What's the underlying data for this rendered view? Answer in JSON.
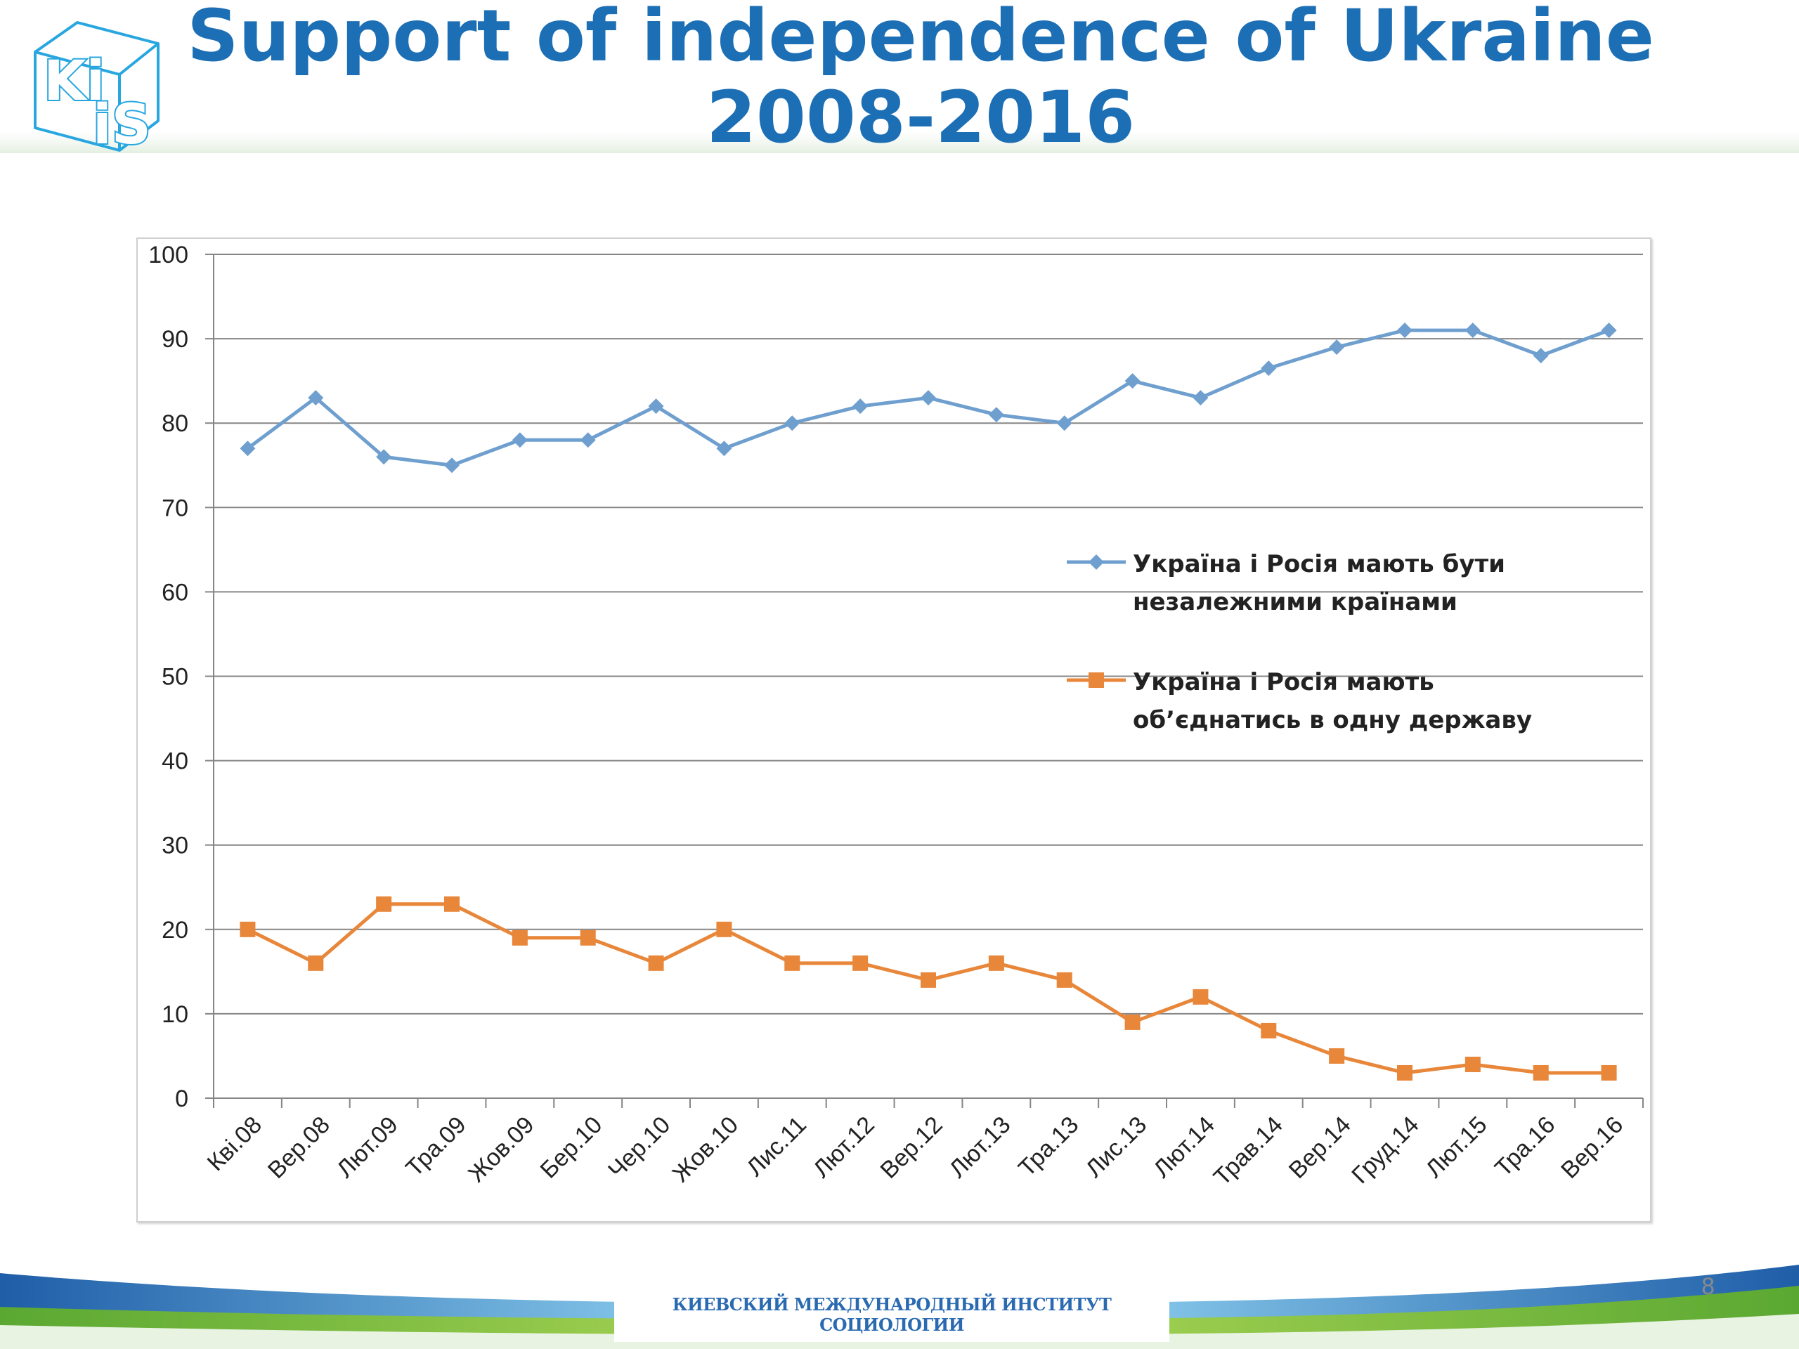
{
  "slide": {
    "title_line1": "Support of independence of Ukraine",
    "title_line2": "2008-2016",
    "footer_text": "КИЕВСКИЙ МЕЖДУНАРОДНЫЙ ИНСТИТУТ СОЦИОЛОГИИ",
    "page_number": "8",
    "logo_text_top": "Ki",
    "logo_text_bottom": "iS"
  },
  "colors": {
    "title": "#1c6fb5",
    "series_independent": "#6f9fcf",
    "series_unite": "#e8863a",
    "gridline": "#868686",
    "logo": "#28a6e0"
  },
  "chart_data": {
    "type": "line",
    "categories": [
      "Кві.08",
      "Вер.08",
      "Лют.09",
      "Тра.09",
      "Жов.09",
      "Бер.10",
      "Чер.10",
      "Жов.10",
      "Лис.11",
      "Лют.12",
      "Вер.12",
      "Лют.13",
      "Тра.13",
      "Лис.13",
      "Лют.14",
      "Трав.14",
      "Вер.14",
      "Груд.14",
      "Лют.15",
      "Тра.16",
      "Вер.16"
    ],
    "series": [
      {
        "name": "Україна і Росія мають бути незалежними країнами",
        "legend_lines": [
          "Україна  і Росія  мають  бути",
          "незалежними країнами"
        ],
        "marker": "diamond",
        "values": [
          77,
          83,
          76,
          75,
          78,
          78,
          82,
          77,
          80,
          82,
          83,
          81,
          80,
          85,
          83,
          86.5,
          89,
          91,
          91,
          88,
          91
        ]
      },
      {
        "name": "Україна і Росія мають об'єднатись в одну державу",
        "legend_lines": [
          "Україна  і Росія  мають",
          "об’єднатись  в одну державу"
        ],
        "marker": "square",
        "values": [
          20,
          16,
          23,
          23,
          19,
          19,
          16,
          20,
          16,
          16,
          14,
          16,
          14,
          9,
          12,
          8,
          5,
          3,
          4,
          3,
          3
        ]
      }
    ],
    "ylim": [
      0,
      100
    ],
    "yticks": [
      0,
      10,
      20,
      30,
      40,
      50,
      60,
      70,
      80,
      90,
      100
    ],
    "grid": true,
    "legend_position": "center-right"
  }
}
